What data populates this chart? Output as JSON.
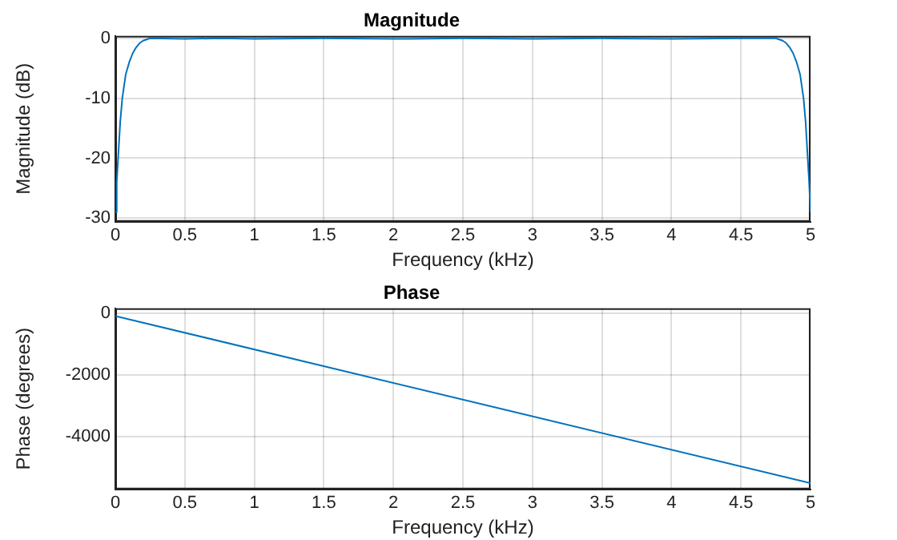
{
  "chart_data": [
    {
      "type": "line",
      "title": "Magnitude",
      "xlabel": "Frequency (kHz)",
      "ylabel": "Magnitude (dB)",
      "color": "#0072bd",
      "grid": true,
      "legend": false,
      "marker": "none",
      "line_style": "solid",
      "x": [
        0,
        0.01,
        0.02,
        0.035,
        0.05,
        0.075,
        0.1,
        0.125,
        0.15,
        0.175,
        0.2,
        0.25,
        0.5,
        0.75,
        1,
        1.5,
        2,
        2.5,
        3,
        3.5,
        4,
        4.5,
        4.75,
        4.8,
        4.825,
        4.85,
        4.875,
        4.9,
        4.925,
        4.95,
        4.965,
        4.98,
        4.99,
        5
      ],
      "values": [
        -29,
        -24,
        -20,
        -14,
        -10,
        -6,
        -4,
        -2.5,
        -1.5,
        -0.8,
        -0.4,
        0,
        -0.1,
        0,
        -0.1,
        0,
        -0.1,
        0,
        -0.1,
        0,
        -0.1,
        0,
        0,
        -0.4,
        -0.8,
        -1.5,
        -2.5,
        -4,
        -6,
        -10,
        -14,
        -20,
        -24,
        -29
      ],
      "xlim": [
        0,
        5
      ],
      "xticks": [
        0,
        0.5,
        1,
        1.5,
        2,
        2.5,
        3,
        3.5,
        4,
        4.5,
        5
      ],
      "ylim": [
        -30.6,
        0.4
      ],
      "yticks": [
        -30,
        -20,
        -10,
        0
      ]
    },
    {
      "type": "line",
      "title": "Phase",
      "xlabel": "Frequency (kHz)",
      "ylabel": "Phase (degrees)",
      "color": "#0072bd",
      "grid": true,
      "legend": false,
      "marker": "none",
      "line_style": "solid",
      "x": [
        0,
        5
      ],
      "values": [
        -100,
        -5500
      ],
      "xlim": [
        0,
        5
      ],
      "xticks": [
        0,
        0.5,
        1,
        1.5,
        2,
        2.5,
        3,
        3.5,
        4,
        4.5,
        5
      ],
      "ylim": [
        -5700,
        150
      ],
      "yticks": [
        -4000,
        -2000,
        0
      ]
    }
  ]
}
